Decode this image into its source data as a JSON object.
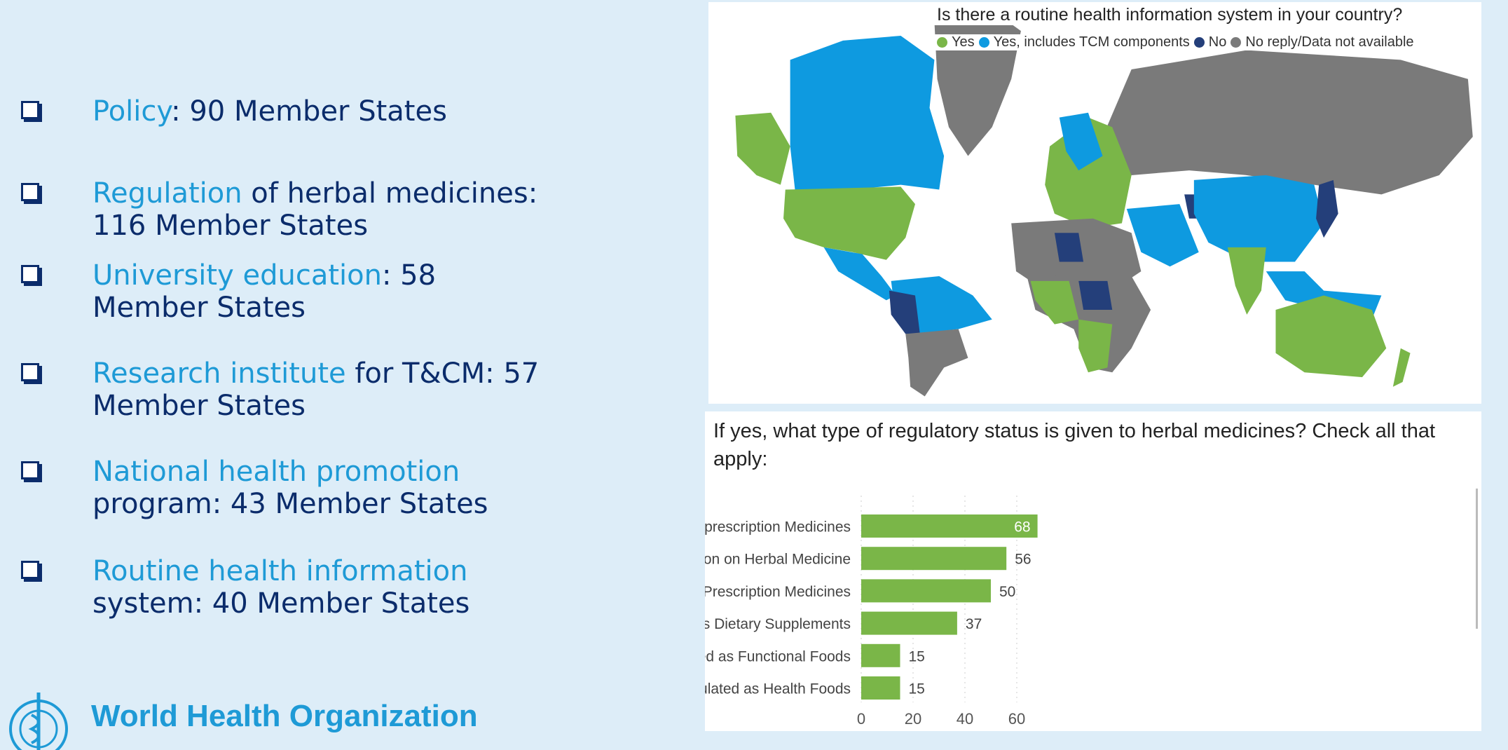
{
  "bullets": [
    {
      "highlight": "Policy",
      "rest": ": 90 Member States"
    },
    {
      "highlight": "Regulation",
      "rest": " of herbal medicines: 116 Member States"
    },
    {
      "highlight": "University education",
      "rest": ": 58 Member States"
    },
    {
      "highlight": "Research institute",
      "rest": " for T&CM: 57 Member States"
    },
    {
      "highlight": "National health promotion",
      "rest": " program: 43 Member States"
    },
    {
      "highlight": "Routine health information",
      "rest": " system: 40 Member States"
    }
  ],
  "logo": {
    "text": "World Health Organization"
  },
  "map": {
    "title": "Is there a routine health information system in your country?",
    "legend": [
      {
        "label": "Yes",
        "color": "#7ab648"
      },
      {
        "label": "Yes, includes TCM components",
        "color": "#0e9ae0"
      },
      {
        "label": "No",
        "color": "#243f7a"
      },
      {
        "label": "No reply/Data not available",
        "color": "#7a7a7a"
      }
    ]
  },
  "chart_data": {
    "type": "bar",
    "orientation": "horizontal",
    "title": "If yes, what type of regulatory status is given to herbal medicines? Check all that apply:",
    "categories": [
      "Regulated as Non-prescription Medicines",
      "Stand-alone regulation on Herbal Medicine",
      "Regulated as Prescription Medicines",
      "Regulated as Dietary Supplements",
      "Regulated as Functional Foods",
      "Regulated as Health Foods"
    ],
    "values": [
      68,
      56,
      50,
      37,
      15,
      15
    ],
    "xticks": [
      0,
      20,
      40,
      60
    ],
    "xlim": [
      0,
      72
    ],
    "color": "#7ab648",
    "grid": true
  }
}
